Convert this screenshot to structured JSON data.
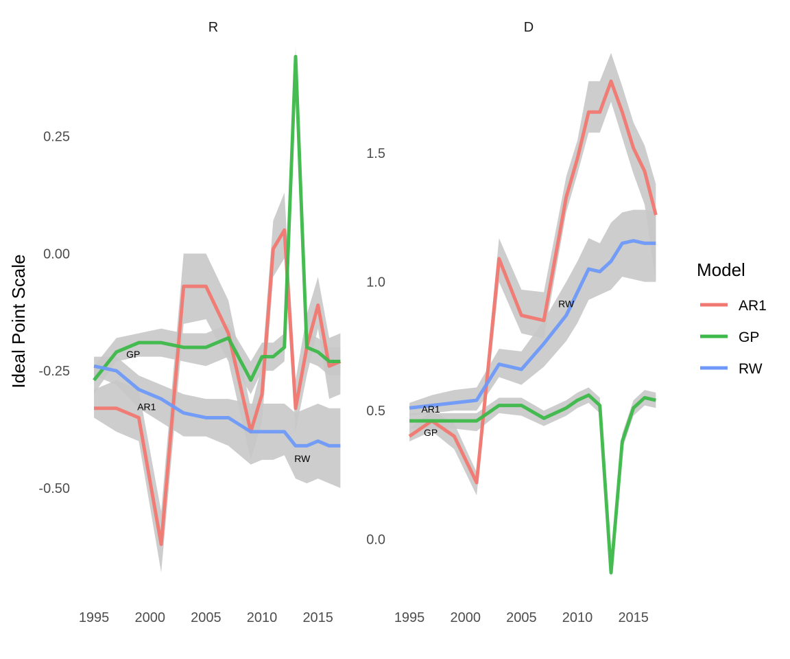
{
  "chart_data": {
    "type": "line",
    "ylabel": "Ideal Point Scale",
    "legend": {
      "title": "Model",
      "placement": "right",
      "entries": [
        "AR1",
        "GP",
        "RW"
      ]
    },
    "colors": {
      "AR1": "#F07870",
      "GP": "#3DB84A",
      "RW": "#6E99F8",
      "band": "#C8C8C8"
    },
    "x": [
      1995,
      1997,
      1999,
      2001,
      2003,
      2005,
      2007,
      2009,
      2010,
      2011,
      2012,
      2013,
      2014,
      2015,
      2016,
      2017
    ],
    "xticks": [
      "1995",
      "2000",
      "2005",
      "2010",
      "2015"
    ],
    "panels": [
      {
        "strip": "R",
        "xlim": [
          1994.2,
          2017.1
        ],
        "ylim": [
          -0.73,
          0.45
        ],
        "yticks": [
          0.25,
          0.0,
          -0.25,
          -0.5
        ],
        "ytick_labels": [
          "0.25",
          "0.00",
          "-0.25",
          "-0.50"
        ],
        "series": [
          {
            "name": "AR1",
            "values": [
              -0.33,
              -0.33,
              -0.35,
              -0.62,
              -0.07,
              -0.07,
              -0.17,
              -0.38,
              -0.3,
              0.01,
              0.05,
              -0.33,
              -0.2,
              -0.11,
              -0.24,
              -0.23
            ],
            "lower": [
              -0.35,
              -0.38,
              -0.4,
              -0.68,
              -0.15,
              -0.14,
              -0.23,
              -0.44,
              -0.36,
              -0.05,
              -0.01,
              -0.38,
              -0.26,
              -0.16,
              -0.31,
              -0.3
            ],
            "upper": [
              -0.29,
              -0.27,
              -0.29,
              -0.55,
              0.0,
              0.0,
              -0.1,
              -0.33,
              -0.24,
              0.07,
              0.13,
              -0.27,
              -0.13,
              -0.05,
              -0.18,
              -0.17
            ]
          },
          {
            "name": "GP",
            "values": [
              -0.27,
              -0.21,
              -0.19,
              -0.19,
              -0.2,
              -0.2,
              -0.18,
              -0.27,
              -0.22,
              -0.22,
              -0.2,
              0.42,
              -0.2,
              -0.21,
              -0.23,
              -0.23
            ],
            "lower": [
              -0.3,
              -0.23,
              -0.22,
              -0.22,
              -0.23,
              -0.24,
              -0.22,
              -0.3,
              -0.25,
              -0.25,
              -0.23,
              0.4,
              -0.23,
              -0.24,
              -0.26,
              -0.26
            ],
            "upper": [
              -0.24,
              -0.18,
              -0.17,
              -0.16,
              -0.17,
              -0.17,
              -0.15,
              -0.23,
              -0.19,
              -0.19,
              -0.17,
              0.44,
              -0.17,
              -0.18,
              -0.2,
              -0.2
            ]
          },
          {
            "name": "RW",
            "values": [
              -0.24,
              -0.25,
              -0.29,
              -0.31,
              -0.34,
              -0.35,
              -0.35,
              -0.38,
              -0.38,
              -0.38,
              -0.38,
              -0.41,
              -0.41,
              -0.4,
              -0.41,
              -0.41
            ],
            "lower": [
              -0.26,
              -0.28,
              -0.33,
              -0.36,
              -0.39,
              -0.39,
              -0.41,
              -0.45,
              -0.44,
              -0.44,
              -0.43,
              -0.48,
              -0.49,
              -0.48,
              -0.49,
              -0.5
            ],
            "upper": [
              -0.22,
              -0.22,
              -0.26,
              -0.28,
              -0.3,
              -0.31,
              -0.31,
              -0.32,
              -0.32,
              -0.32,
              -0.32,
              -0.34,
              -0.33,
              -0.32,
              -0.33,
              -0.33
            ]
          }
        ],
        "annotations": [
          {
            "text": "GP",
            "x": 1998.5,
            "y": -0.215
          },
          {
            "text": "AR1",
            "x": 1999.7,
            "y": -0.327
          },
          {
            "text": "RW",
            "x": 2013.6,
            "y": -0.437
          }
        ]
      },
      {
        "strip": "D",
        "xlim": [
          1994.2,
          2017.1
        ],
        "ylim": [
          -0.22,
          1.93
        ],
        "yticks": [
          1.5,
          1.0,
          0.5,
          0.0
        ],
        "ytick_labels": [
          "1.5",
          "1.0",
          "0.5",
          "0.0"
        ],
        "series": [
          {
            "name": "AR1",
            "values": [
              0.4,
              0.46,
              0.4,
              0.22,
              1.09,
              0.87,
              0.85,
              1.33,
              1.48,
              1.66,
              1.66,
              1.78,
              1.66,
              1.52,
              1.43,
              1.26
            ],
            "lower": [
              0.38,
              0.42,
              0.35,
              0.17,
              1.0,
              0.8,
              0.78,
              1.27,
              1.42,
              1.58,
              1.58,
              1.7,
              1.56,
              1.42,
              1.3,
              1.0
            ],
            "upper": [
              0.43,
              0.5,
              0.45,
              0.26,
              1.17,
              0.97,
              0.96,
              1.41,
              1.55,
              1.78,
              1.78,
              1.89,
              1.76,
              1.62,
              1.53,
              1.38
            ]
          },
          {
            "name": "GP",
            "values": [
              0.46,
              0.46,
              0.46,
              0.46,
              0.52,
              0.52,
              0.47,
              0.51,
              0.54,
              0.56,
              0.52,
              -0.13,
              0.38,
              0.51,
              0.55,
              0.54
            ],
            "lower": [
              0.43,
              0.43,
              0.43,
              0.42,
              0.49,
              0.48,
              0.44,
              0.48,
              0.51,
              0.53,
              0.49,
              -0.15,
              0.35,
              0.48,
              0.52,
              0.51
            ],
            "upper": [
              0.49,
              0.49,
              0.49,
              0.49,
              0.55,
              0.55,
              0.5,
              0.54,
              0.57,
              0.59,
              0.55,
              -0.11,
              0.41,
              0.54,
              0.58,
              0.57
            ]
          },
          {
            "name": "RW",
            "values": [
              0.51,
              0.52,
              0.53,
              0.54,
              0.68,
              0.66,
              0.76,
              0.87,
              0.96,
              1.05,
              1.04,
              1.08,
              1.15,
              1.16,
              1.15,
              1.15
            ],
            "lower": [
              0.48,
              0.49,
              0.5,
              0.5,
              0.63,
              0.6,
              0.67,
              0.77,
              0.84,
              0.93,
              0.95,
              0.97,
              1.02,
              1.01,
              1.0,
              1.0
            ],
            "upper": [
              0.53,
              0.56,
              0.58,
              0.59,
              0.74,
              0.73,
              0.85,
              1.0,
              1.08,
              1.17,
              1.15,
              1.23,
              1.27,
              1.28,
              1.28,
              1.27
            ]
          }
        ],
        "annotations": [
          {
            "text": "AR1",
            "x": 1996.9,
            "y": 0.505
          },
          {
            "text": "GP",
            "x": 1996.9,
            "y": 0.415
          },
          {
            "text": "RW",
            "x": 2009.0,
            "y": 0.915
          }
        ]
      }
    ]
  }
}
